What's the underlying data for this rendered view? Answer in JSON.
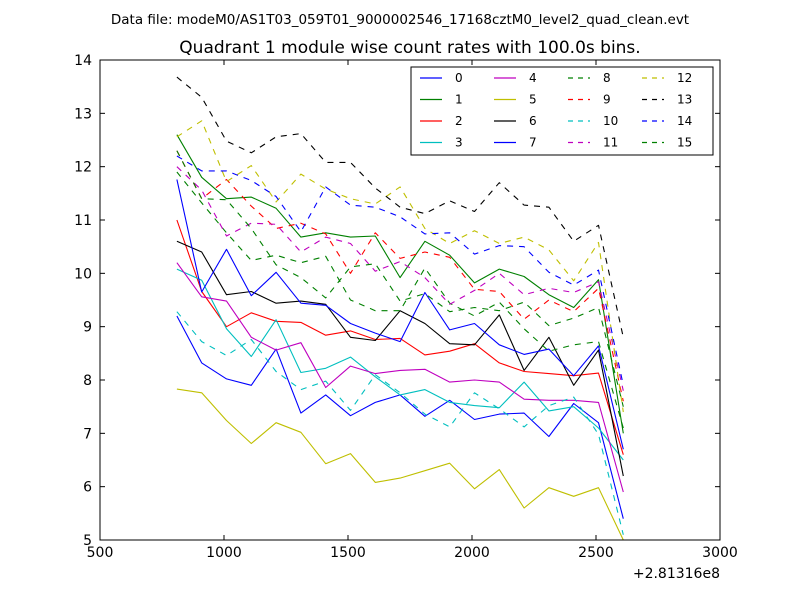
{
  "chart_data": {
    "type": "line",
    "suptitle": "Data file: modeM0/AS1T03_059T01_9000002546_17168cztM0_level2_quad_clean.evt",
    "title": "Quadrant 1 module wise count rates with 100.0s bins.",
    "xlabel": "",
    "ylabel": "",
    "x_offset_label": "+2.81316e8",
    "xlim": [
      500,
      3000
    ],
    "ylim": [
      5,
      14
    ],
    "xticks": [
      500,
      1000,
      1500,
      2000,
      2500,
      3000
    ],
    "yticks": [
      5,
      6,
      7,
      8,
      9,
      10,
      11,
      12,
      13,
      14
    ],
    "xtick_labels": [
      "500",
      "1000",
      "1500",
      "2000",
      "2500",
      "3000"
    ],
    "ytick_labels": [
      "5",
      "6",
      "7",
      "8",
      "9",
      "10",
      "11",
      "12",
      "13",
      "14"
    ],
    "legend_position": "top-right",
    "x": [
      810,
      910,
      1010,
      1110,
      1210,
      1310,
      1410,
      1510,
      1610,
      1710,
      1810,
      1910,
      2010,
      2110,
      2210,
      2310,
      2410,
      2510,
      2610
    ],
    "series": [
      {
        "name": "0",
        "color": "#0000ff",
        "dash": "solid",
        "values": [
          9.2,
          8.32,
          8.02,
          7.9,
          8.58,
          7.38,
          7.72,
          7.33,
          7.58,
          7.72,
          7.32,
          7.62,
          7.26,
          7.36,
          7.38,
          6.94,
          7.56,
          7.2,
          5.4
        ]
      },
      {
        "name": "1",
        "color": "#008000",
        "dash": "solid",
        "values": [
          12.6,
          11.8,
          11.4,
          11.43,
          11.22,
          10.68,
          10.76,
          10.68,
          10.7,
          9.92,
          10.6,
          10.34,
          9.82,
          10.08,
          9.94,
          9.6,
          9.36,
          9.88,
          7.0
        ]
      },
      {
        "name": "2",
        "color": "#ff0000",
        "dash": "solid",
        "values": [
          11.0,
          9.66,
          9.0,
          9.26,
          9.1,
          9.08,
          8.84,
          8.92,
          8.76,
          8.78,
          8.47,
          8.54,
          8.68,
          8.32,
          8.16,
          8.12,
          8.08,
          8.13,
          6.6
        ]
      },
      {
        "name": "3",
        "color": "#00bfbf",
        "dash": "solid",
        "values": [
          10.08,
          9.87,
          8.96,
          8.44,
          9.13,
          8.14,
          8.22,
          8.43,
          8.06,
          7.72,
          7.82,
          7.58,
          7.52,
          7.48,
          7.96,
          7.42,
          7.5,
          7.1,
          6.5
        ]
      },
      {
        "name": "4",
        "color": "#bf00bf",
        "dash": "solid",
        "values": [
          10.2,
          9.56,
          9.48,
          8.8,
          8.56,
          8.7,
          7.86,
          8.26,
          8.12,
          8.18,
          8.2,
          7.96,
          8.0,
          7.96,
          7.64,
          7.62,
          7.62,
          7.58,
          5.9
        ]
      },
      {
        "name": "5",
        "color": "#bfbf00",
        "dash": "solid",
        "values": [
          7.83,
          7.76,
          7.24,
          6.81,
          7.2,
          7.02,
          6.43,
          6.62,
          6.08,
          6.16,
          6.3,
          6.44,
          5.96,
          6.32,
          5.6,
          5.98,
          5.82,
          5.98,
          5.0
        ]
      },
      {
        "name": "6",
        "color": "#000000",
        "dash": "solid",
        "values": [
          10.6,
          10.4,
          9.6,
          9.66,
          9.44,
          9.48,
          9.42,
          8.8,
          8.74,
          9.3,
          9.06,
          8.68,
          8.66,
          9.22,
          8.18,
          8.8,
          7.9,
          8.56,
          6.2
        ]
      },
      {
        "name": "7",
        "color": "#0000ff",
        "dash": "solid",
        "values": [
          11.76,
          9.65,
          10.45,
          9.58,
          10.02,
          9.44,
          9.4,
          9.06,
          8.88,
          8.72,
          9.64,
          8.94,
          9.06,
          8.66,
          8.48,
          8.58,
          8.08,
          8.64,
          6.7
        ]
      },
      {
        "name": "8",
        "color": "#008000",
        "dash": "dashed",
        "values": [
          11.9,
          11.32,
          10.76,
          10.24,
          10.34,
          10.2,
          10.32,
          9.5,
          9.3,
          9.3,
          10.1,
          9.44,
          9.2,
          9.46,
          8.96,
          8.54,
          8.66,
          8.72,
          7.1
        ]
      },
      {
        "name": "9",
        "color": "#ff0000",
        "dash": "dashed",
        "values": [
          12.3,
          11.4,
          11.76,
          11.26,
          10.84,
          10.94,
          10.74,
          10.0,
          10.76,
          10.28,
          10.4,
          10.3,
          9.7,
          9.66,
          9.14,
          9.5,
          9.28,
          9.72,
          7.6
        ]
      },
      {
        "name": "10",
        "color": "#00bfbf",
        "dash": "dashed",
        "values": [
          9.28,
          8.72,
          8.46,
          8.76,
          8.16,
          7.82,
          7.98,
          7.43,
          8.1,
          7.76,
          7.36,
          7.12,
          7.76,
          7.46,
          7.12,
          7.52,
          7.68,
          6.98,
          5.1
        ]
      },
      {
        "name": "11",
        "color": "#bf00bf",
        "dash": "dashed",
        "values": [
          12.0,
          11.56,
          10.7,
          10.94,
          10.92,
          10.4,
          10.68,
          10.56,
          10.04,
          10.22,
          9.92,
          9.42,
          9.68,
          10.0,
          9.6,
          9.72,
          9.64,
          9.84,
          7.8
        ]
      },
      {
        "name": "12",
        "color": "#bfbf00",
        "dash": "dashed",
        "values": [
          12.56,
          12.86,
          11.72,
          12.02,
          11.34,
          11.86,
          11.58,
          11.4,
          11.3,
          11.62,
          10.84,
          10.56,
          10.8,
          10.56,
          10.68,
          10.44,
          9.86,
          10.58,
          7.4
        ]
      },
      {
        "name": "13",
        "color": "#000000",
        "dash": "dashed",
        "values": [
          13.68,
          13.3,
          12.48,
          12.26,
          12.56,
          12.62,
          12.08,
          12.08,
          11.6,
          11.24,
          11.12,
          11.36,
          11.16,
          11.7,
          11.28,
          11.24,
          10.6,
          10.9,
          8.8
        ]
      },
      {
        "name": "14",
        "color": "#0000ff",
        "dash": "dashed",
        "values": [
          12.2,
          11.92,
          11.92,
          11.74,
          11.44,
          10.78,
          11.62,
          11.28,
          11.24,
          11.06,
          10.74,
          10.76,
          10.36,
          10.52,
          10.5,
          10.02,
          9.78,
          10.06,
          7.9
        ]
      },
      {
        "name": "15",
        "color": "#008000",
        "dash": "dashed",
        "values": [
          12.3,
          11.4,
          11.38,
          10.84,
          10.16,
          9.92,
          9.54,
          10.12,
          10.18,
          9.48,
          9.62,
          9.28,
          9.36,
          9.3,
          9.46,
          9.02,
          9.16,
          9.36,
          7.5
        ]
      }
    ]
  }
}
